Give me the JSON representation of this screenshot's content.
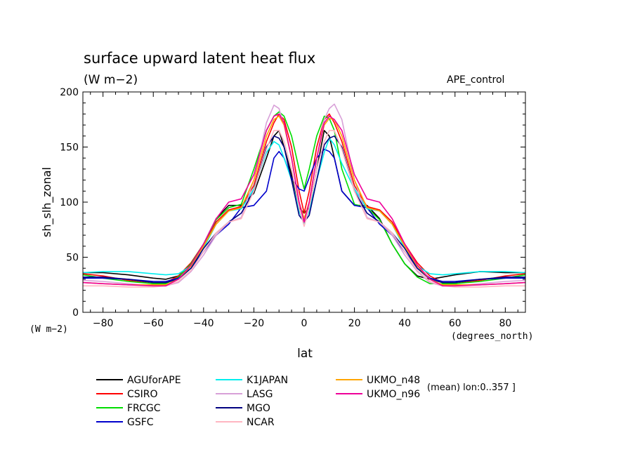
{
  "header": {
    "title": "surface upward latent heat flux",
    "units": "(W m−2)",
    "experiment": "APE_control"
  },
  "chart_data": {
    "type": "line",
    "title": "surface upward latent heat flux",
    "ylabel": "sh_slh_zonal",
    "xlabel": "lat",
    "y_units": "(W m−2)",
    "x_units": "(degrees_north)",
    "xlim": [
      -88,
      88
    ],
    "ylim": [
      0,
      200
    ],
    "x_ticks": [
      -80,
      -60,
      -40,
      -20,
      0,
      20,
      40,
      60,
      80
    ],
    "y_ticks": [
      0,
      50,
      100,
      150,
      200
    ],
    "grid": false,
    "legend_position": "bottom",
    "note": "(mean) lon:0..357 ]",
    "x": [
      -88,
      -80,
      -70,
      -60,
      -55,
      -50,
      -45,
      -40,
      -35,
      -30,
      -25,
      -20,
      -15,
      -12,
      -10,
      -8,
      -5,
      -2,
      0,
      2,
      5,
      8,
      10,
      12,
      15,
      20,
      25,
      30,
      35,
      40,
      45,
      50,
      55,
      60,
      70,
      80,
      88
    ],
    "series": [
      {
        "name": "AGUforAPE",
        "color": "#000000",
        "values": [
          36,
          36,
          34,
          31,
          30,
          33,
          44,
          62,
          85,
          97,
          97,
          108,
          140,
          160,
          165,
          150,
          125,
          95,
          90,
          95,
          130,
          165,
          160,
          140,
          110,
          97,
          97,
          85,
          62,
          44,
          33,
          30,
          32,
          34,
          37,
          36,
          36
        ]
      },
      {
        "name": "CSIRO",
        "color": "#ff0000",
        "values": [
          35,
          33,
          29,
          26,
          27,
          33,
          45,
          62,
          82,
          93,
          96,
          115,
          155,
          172,
          180,
          175,
          150,
          110,
          90,
          110,
          150,
          175,
          180,
          172,
          155,
          115,
          96,
          93,
          82,
          62,
          45,
          33,
          27,
          26,
          29,
          33,
          35
        ]
      },
      {
        "name": "FRCGC",
        "color": "#00dd00",
        "values": [
          34,
          31,
          28,
          26,
          26,
          32,
          44,
          62,
          84,
          95,
          98,
          130,
          165,
          178,
          182,
          178,
          160,
          130,
          112,
          130,
          160,
          178,
          176,
          165,
          130,
          98,
          95,
          84,
          62,
          44,
          32,
          26,
          26,
          26,
          28,
          31,
          34
        ]
      },
      {
        "name": "GSFC",
        "color": "#0000cc",
        "values": [
          31,
          31,
          30,
          28,
          28,
          31,
          40,
          55,
          70,
          80,
          95,
          97,
          110,
          140,
          146,
          140,
          122,
          112,
          110,
          122,
          140,
          148,
          146,
          140,
          110,
          97,
          95,
          80,
          70,
          55,
          40,
          31,
          28,
          28,
          30,
          31,
          31
        ]
      },
      {
        "name": "K1JAPAN",
        "color": "#00eeee",
        "values": [
          36,
          37,
          37,
          35,
          34,
          35,
          42,
          58,
          80,
          92,
          94,
          112,
          145,
          155,
          152,
          140,
          120,
          92,
          80,
          92,
          120,
          145,
          158,
          152,
          135,
          112,
          94,
          92,
          80,
          58,
          42,
          35,
          34,
          35,
          37,
          37,
          36
        ]
      },
      {
        "name": "LASG",
        "color": "#d8a0d8",
        "values": [
          29,
          28,
          26,
          24,
          24,
          27,
          37,
          52,
          70,
          82,
          86,
          120,
          172,
          188,
          185,
          170,
          140,
          100,
          85,
          100,
          140,
          175,
          185,
          189,
          175,
          120,
          86,
          82,
          70,
          52,
          37,
          27,
          24,
          24,
          26,
          28,
          29
        ]
      },
      {
        "name": "MGO",
        "color": "#000080",
        "values": [
          32,
          32,
          30,
          27,
          27,
          30,
          40,
          58,
          72,
          82,
          90,
          110,
          150,
          160,
          158,
          150,
          120,
          88,
          82,
          88,
          120,
          152,
          158,
          160,
          150,
          110,
          90,
          82,
          72,
          58,
          40,
          30,
          27,
          27,
          30,
          32,
          32
        ]
      },
      {
        "name": "NCAR",
        "color": "#ffb6c1",
        "values": [
          24,
          24,
          23,
          23,
          24,
          28,
          38,
          55,
          72,
          82,
          85,
          110,
          148,
          165,
          165,
          155,
          130,
          95,
          78,
          95,
          130,
          155,
          165,
          165,
          148,
          110,
          85,
          82,
          72,
          55,
          38,
          28,
          24,
          23,
          23,
          24,
          24
        ]
      },
      {
        "name": "UKMO_n48",
        "color": "#ffa500",
        "values": [
          27,
          26,
          25,
          25,
          25,
          30,
          42,
          60,
          80,
          92,
          95,
          120,
          160,
          175,
          178,
          170,
          140,
          100,
          85,
          100,
          140,
          170,
          176,
          175,
          160,
          120,
          95,
          92,
          80,
          60,
          42,
          30,
          25,
          25,
          25,
          26,
          27
        ]
      },
      {
        "name": "UKMO_n96",
        "color": "#ee0099",
        "values": [
          27,
          26,
          25,
          24,
          24,
          30,
          43,
          62,
          85,
          100,
          103,
          125,
          165,
          178,
          180,
          172,
          140,
          100,
          82,
          100,
          140,
          172,
          178,
          175,
          165,
          125,
          103,
          100,
          85,
          62,
          43,
          30,
          24,
          24,
          25,
          26,
          27
        ]
      }
    ]
  }
}
